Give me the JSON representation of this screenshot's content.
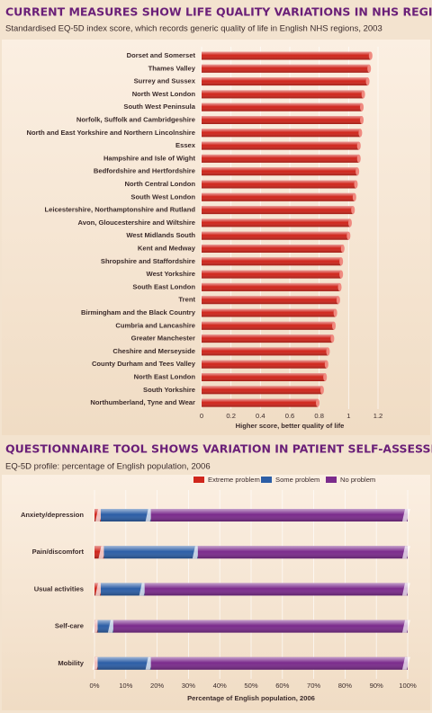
{
  "chart_data": [
    {
      "type": "bar",
      "orientation": "horizontal",
      "title": "CURRENT MEASURES SHOW LIFE QUALITY VARIATIONS IN NHS REGIONS",
      "subtitle": "Standardised EQ-5D index score, which records generic quality of life in English NHS regions, 2003",
      "x_label": "Higher score, better quality of life",
      "categories": [
        "Dorset and Somerset",
        "Thames Valley",
        "Surrey and Sussex",
        "North West London",
        "South West Peninsula",
        "Norfolk, Suffolk and Cambridgeshire",
        "North and East Yorkshire and Northern Lincolnshire",
        "Essex",
        "Hampshire and Isle of Wight",
        "Bedfordshire and Hertfordshire",
        "North Central London",
        "South West London",
        "Leicestershire, Northamptonshire and Rutland",
        "Avon, Gloucestershire and Wiltshire",
        "West Midlands South",
        "Kent and Medway",
        "Shropshire and Staffordshire",
        "West Yorkshire",
        "South East London",
        "Trent",
        "Birmingham and the Black Country",
        "Cumbria and Lancashire",
        "Greater Manchester",
        "Cheshire and Merseyside",
        "County Durham and Tees Valley",
        "North East London",
        "South Yorkshire",
        "Northumberland, Tyne and Wear"
      ],
      "values": [
        1.15,
        1.14,
        1.13,
        1.1,
        1.09,
        1.09,
        1.08,
        1.07,
        1.07,
        1.06,
        1.05,
        1.04,
        1.03,
        1.01,
        1.0,
        0.96,
        0.95,
        0.95,
        0.94,
        0.93,
        0.91,
        0.9,
        0.89,
        0.86,
        0.85,
        0.84,
        0.82,
        0.79
      ],
      "color": "#d0261c",
      "xlim": [
        0,
        1.2
      ],
      "xticks": [
        0,
        0.2,
        0.4,
        0.6,
        0.8,
        1,
        1.2
      ]
    },
    {
      "type": "stacked_bar",
      "orientation": "horizontal",
      "title": "QUESTIONNAIRE TOOL SHOWS VARIATION IN PATIENT SELF-ASSESSMENT",
      "subtitle": "EQ-5D profile: percentage of English population, 2006",
      "x_label": "Percentage of English population, 2006",
      "categories": [
        "Anxiety/depression",
        "Pain/discomfort",
        "Usual activities",
        "Self-care",
        "Mobility"
      ],
      "series": [
        {
          "name": "Extreme problem",
          "color": "#d0261c",
          "values": [
            2,
            3,
            2,
            1,
            1
          ]
        },
        {
          "name": "Some problem",
          "color": "#2c5ea6",
          "values": [
            16,
            30,
            14,
            5,
            17
          ]
        },
        {
          "name": "No problem",
          "color": "#7b2b8c",
          "values": [
            82,
            67,
            84,
            94,
            82
          ]
        }
      ],
      "legend": "top-right",
      "xlim": [
        0,
        100
      ],
      "xticks": [
        {
          "value": 0,
          "label": "0%"
        },
        {
          "value": 10,
          "label": "10%"
        },
        {
          "value": 20,
          "label": "20%"
        },
        {
          "value": 30,
          "label": "30%"
        },
        {
          "value": 40,
          "label": "40%"
        },
        {
          "value": 50,
          "label": "50%"
        },
        {
          "value": 60,
          "label": "60%"
        },
        {
          "value": 70,
          "label": "70%"
        },
        {
          "value": 80,
          "label": "80%"
        },
        {
          "value": 90,
          "label": "90%"
        },
        {
          "value": 100,
          "label": "100%"
        }
      ]
    }
  ]
}
